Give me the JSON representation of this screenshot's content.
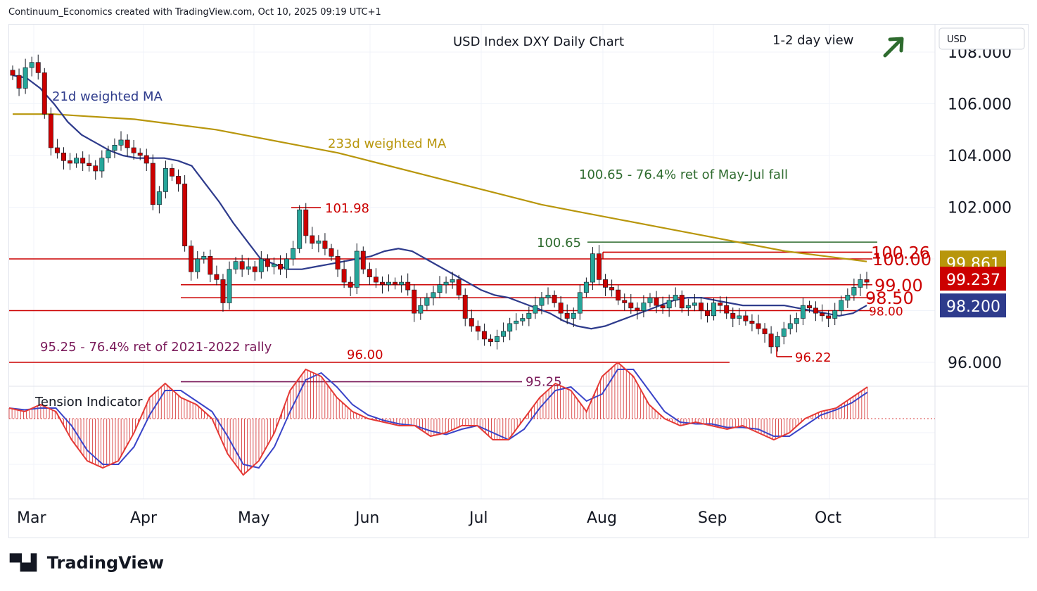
{
  "header": {
    "attribution": "Continuum_Economics created with TradingView.com, Oct 10, 2025 09:19 UTC+1"
  },
  "chart_title": "USD Index DXY Daily Chart",
  "view_label": "1-2 day view",
  "currency_badge": "USD",
  "brand": "TradingView",
  "colors": {
    "up_candle": "#26a69a",
    "down_candle": "#cc0000",
    "ma21": "#2e3b8c",
    "ma233": "#b8960b",
    "red_level": "#cc0000",
    "green_level": "#2e6b2e",
    "purple_level": "#7a1a5a",
    "view_arrow": "#2e6b2e"
  },
  "chart_data": {
    "type": "candlestick",
    "title": "USD Index DXY Daily Chart",
    "x_labels": [
      "Mar",
      "Apr",
      "May",
      "Jun",
      "Jul",
      "Aug",
      "Sep",
      "Oct"
    ],
    "y_ticks": [
      "96.000",
      "102.000",
      "104.000",
      "106.000",
      "108.000"
    ],
    "ylim": [
      95.0,
      108.2
    ],
    "price_badges": [
      {
        "label": "99.861",
        "value": 99.861,
        "color": "#b8960b"
      },
      {
        "label": "99.237",
        "value": 99.237,
        "color": "#cc0000"
      },
      {
        "label": "98.200",
        "value": 98.2,
        "color": "#2e3b8c"
      }
    ],
    "ma_labels": {
      "ma21": "21d weighted MA",
      "ma233": "233d weighted MA"
    },
    "annotations": {
      "retracement_upper": "100.65 - 76.4% ret of May-Jul fall",
      "retracement_lower": "95.25 - 76.4% ret of 2021-2022 rally"
    },
    "levels": [
      {
        "label": "101.98",
        "value": 101.98,
        "color": "#cc0000"
      },
      {
        "label": "100.65",
        "value": 100.65,
        "color": "#2e6b2e"
      },
      {
        "label": "100.26",
        "value": 100.26,
        "color": "#cc0000"
      },
      {
        "label": "100.00",
        "value": 100.0,
        "color": "#cc0000"
      },
      {
        "label": "99.00",
        "value": 99.0,
        "color": "#cc0000"
      },
      {
        "label": "98.50",
        "value": 98.5,
        "color": "#cc0000"
      },
      {
        "label": "98.00",
        "value": 98.0,
        "color": "#cc0000"
      },
      {
        "label": "96.22",
        "value": 96.22,
        "color": "#cc0000"
      },
      {
        "label": "96.00",
        "value": 96.0,
        "color": "#cc0000"
      },
      {
        "label": "95.25",
        "value": 95.25,
        "color": "#7a1a5a"
      }
    ],
    "candles_close": [
      107.1,
      106.6,
      107.4,
      107.6,
      107.2,
      105.6,
      104.3,
      104.1,
      103.8,
      103.7,
      103.9,
      103.7,
      103.6,
      103.4,
      103.9,
      104.2,
      104.4,
      104.6,
      104.3,
      104.1,
      104.0,
      103.7,
      102.1,
      102.6,
      103.5,
      103.2,
      102.9,
      100.5,
      99.5,
      100.0,
      100.1,
      99.4,
      99.2,
      98.3,
      99.6,
      99.9,
      99.6,
      99.7,
      99.5,
      100.0,
      99.7,
      99.8,
      99.6,
      100.0,
      100.4,
      101.9,
      100.9,
      100.6,
      100.7,
      100.4,
      100.1,
      99.6,
      99.1,
      98.9,
      100.3,
      99.6,
      99.3,
      99.1,
      99.0,
      99.1,
      99.0,
      99.1,
      98.8,
      97.9,
      98.2,
      98.5,
      98.7,
      99.0,
      99.1,
      99.2,
      98.6,
      97.7,
      97.4,
      97.2,
      96.9,
      96.8,
      97.0,
      97.2,
      97.5,
      97.6,
      97.7,
      97.9,
      98.2,
      98.5,
      98.6,
      98.3,
      97.9,
      97.7,
      97.9,
      98.7,
      99.1,
      100.2,
      99.2,
      98.9,
      98.8,
      98.4,
      98.3,
      98.1,
      98.0,
      98.3,
      98.5,
      98.2,
      98.1,
      98.4,
      98.6,
      98.1,
      98.2,
      98.3,
      98.0,
      97.8,
      98.3,
      98.2,
      97.9,
      97.7,
      97.8,
      97.6,
      97.5,
      97.3,
      97.1,
      96.6,
      97.0,
      97.3,
      97.5,
      97.7,
      98.2,
      98.1,
      97.9,
      97.8,
      97.7,
      98.0,
      98.4,
      98.6,
      98.9,
      99.2,
      99.1
    ],
    "ma21": [
      107.1,
      107.0,
      106.6,
      106.0,
      105.3,
      104.8,
      104.5,
      104.2,
      104.0,
      103.9,
      103.9,
      103.9,
      103.8,
      103.6,
      102.9,
      102.2,
      101.4,
      100.7,
      100.0,
      99.8,
      99.6,
      99.6,
      99.7,
      99.8,
      99.9,
      100.0,
      100.1,
      100.3,
      100.4,
      100.3,
      100.0,
      99.7,
      99.4,
      99.1,
      98.8,
      98.6,
      98.5,
      98.3,
      98.1,
      97.9,
      97.6,
      97.4,
      97.3,
      97.4,
      97.6,
      97.8,
      98.0,
      98.2,
      98.4,
      98.5,
      98.5,
      98.4,
      98.3,
      98.2,
      98.2,
      98.2,
      98.2,
      98.1,
      98.0,
      97.9,
      97.8,
      97.9,
      98.2
    ],
    "ma233": [
      105.6,
      105.6,
      105.5,
      105.4,
      105.2,
      105.0,
      104.7,
      104.4,
      104.1,
      103.7,
      103.3,
      102.9,
      102.5,
      102.1,
      101.8,
      101.5,
      101.2,
      100.9,
      100.6,
      100.3,
      100.1,
      99.9
    ],
    "tension_indicator": [
      0.15,
      0.1,
      0.2,
      0.1,
      -0.3,
      -0.6,
      -0.7,
      -0.6,
      -0.2,
      0.3,
      0.5,
      0.3,
      0.2,
      0.0,
      -0.5,
      -0.8,
      -0.6,
      -0.2,
      0.4,
      0.7,
      0.6,
      0.3,
      0.1,
      0.0,
      -0.05,
      -0.1,
      -0.1,
      -0.25,
      -0.2,
      -0.1,
      -0.1,
      -0.3,
      -0.3,
      0.0,
      0.3,
      0.5,
      0.4,
      0.1,
      0.6,
      0.8,
      0.6,
      0.2,
      0.0,
      -0.1,
      -0.05,
      -0.1,
      -0.15,
      -0.1,
      -0.2,
      -0.3,
      -0.2,
      0.0,
      0.1,
      0.15,
      0.3,
      0.45
    ]
  },
  "tension_label": "Tension Indicator"
}
